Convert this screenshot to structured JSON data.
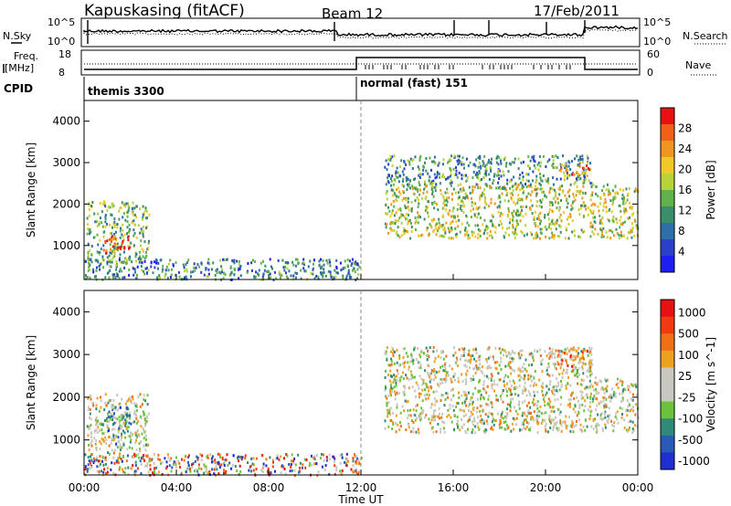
{
  "header": {
    "station": "Kapuskasing (fitACF)",
    "beam": "Beam 12",
    "date": "17/Feb/2011"
  },
  "top_strip": {
    "nsky_label": "N.Sky",
    "nsearch_label": "N.Search",
    "noise_ticks_left": [
      "10^5",
      "10^0"
    ],
    "noise_ticks_right": [
      "10^5",
      "10^0"
    ],
    "freq_label_1": "Freq.",
    "freq_label_2": "[MHz]",
    "freq_ticks": [
      "18",
      "8"
    ],
    "nave_ticks": [
      "60",
      "0"
    ],
    "nave_label": "Nave",
    "cpid_label": "CPID",
    "cpid_segments": [
      {
        "label": "themis 3300",
        "start_hour": 0
      },
      {
        "label": "normal (fast) 151",
        "start_hour": 12
      }
    ]
  },
  "colors": {
    "power": [
      "#1e1ef0",
      "#2a40c8",
      "#2f6fa8",
      "#3a8f6a",
      "#5fb24a",
      "#b8d23a",
      "#f0c828",
      "#f09620",
      "#f06018",
      "#e81010"
    ],
    "velocity": [
      "#1e2ed0",
      "#2a5ab8",
      "#2f8a7a",
      "#6cc23a",
      "#c8c8c0",
      "#c8c8c0",
      "#f0a020",
      "#f07018",
      "#f03a10",
      "#e81010"
    ]
  },
  "chart_data": [
    {
      "type": "heatmap",
      "panel": "power",
      "xlabel": "",
      "ylabel": "Slant Range [km]",
      "x_ticks": [
        "00:00",
        "04:00",
        "08:00",
        "12:00",
        "16:00",
        "20:00",
        "00:00"
      ],
      "y_ticks": [
        1000,
        2000,
        3000,
        4000
      ],
      "xlim_hours": [
        0,
        24
      ],
      "ylim_km": [
        180,
        4500
      ],
      "colorbar_label": "Power [dB]",
      "colorbar_ticks": [
        "4",
        "8",
        "12",
        "16",
        "20",
        "24",
        "28"
      ],
      "regions": [
        {
          "t0": 0.1,
          "t1": 2.8,
          "r0": 600,
          "r1": 2100,
          "level": 0.45
        },
        {
          "t0": 0.8,
          "t1": 2.0,
          "r0": 850,
          "r1": 1250,
          "level": 0.92
        },
        {
          "t0": 0.0,
          "t1": 12.0,
          "r0": 200,
          "r1": 700,
          "level": 0.3
        },
        {
          "t0": 13.0,
          "t1": 24.0,
          "r0": 1200,
          "r1": 2500,
          "level": 0.55
        },
        {
          "t0": 13.0,
          "t1": 22.0,
          "r0": 2500,
          "r1": 3200,
          "level": 0.35
        },
        {
          "t0": 20.5,
          "t1": 22.0,
          "r0": 2700,
          "r1": 3000,
          "level": 0.8
        }
      ]
    },
    {
      "type": "heatmap",
      "panel": "velocity",
      "xlabel": "Time UT",
      "ylabel": "Slant Range [km]",
      "x_ticks": [
        "00:00",
        "04:00",
        "08:00",
        "12:00",
        "16:00",
        "20:00",
        "00:00"
      ],
      "y_ticks": [
        1000,
        2000,
        3000,
        4000
      ],
      "xlim_hours": [
        0,
        24
      ],
      "ylim_km": [
        180,
        4500
      ],
      "colorbar_label": "Velocity [m s^-1]",
      "colorbar_ticks": [
        "1000",
        "500",
        "100",
        "25",
        "-25",
        "-100",
        "-500",
        "-1000"
      ],
      "regions": [
        {
          "t0": 0.1,
          "t1": 2.8,
          "r0": 600,
          "r1": 2100,
          "level": 0.5
        },
        {
          "t0": 1.0,
          "t1": 2.0,
          "r0": 900,
          "r1": 1800,
          "level": 0.3
        },
        {
          "t0": 0.0,
          "t1": 12.0,
          "r0": 200,
          "r1": 700,
          "level": 0.5
        },
        {
          "t0": 13.0,
          "t1": 24.0,
          "r0": 1200,
          "r1": 2500,
          "level": 0.5
        },
        {
          "t0": 13.0,
          "t1": 22.0,
          "r0": 2500,
          "r1": 3200,
          "level": 0.5
        },
        {
          "t0": 20.5,
          "t1": 22.0,
          "r0": 2700,
          "r1": 3200,
          "level": 0.7
        }
      ]
    }
  ]
}
